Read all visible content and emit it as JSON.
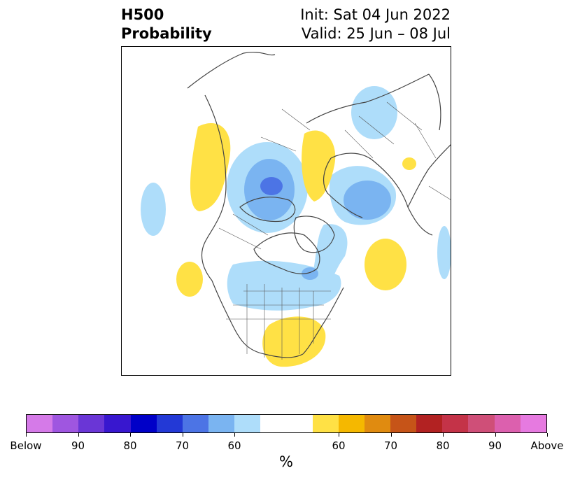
{
  "title": {
    "left_line1": "H500",
    "left_line2": "Probability",
    "right_line1": "Init: Sat 04 Jun 2022",
    "right_line2": "Valid: 25 Jun – 08 Jul"
  },
  "colorbar": {
    "unit": "%",
    "colors": [
      "#d57ae8",
      "#9f56e0",
      "#6a36d6",
      "#3817cf",
      "#0000c8",
      "#2339d6",
      "#4c74e5",
      "#7ab4f1",
      "#aeddfa",
      "#ffffff",
      "#ffffff",
      "#ffe145",
      "#f5b800",
      "#e08b10",
      "#c65418",
      "#b22222",
      "#c43348",
      "#cf4f78",
      "#dc60ae",
      "#e67ae0"
    ],
    "tick_labels": [
      "Below",
      "90",
      "80",
      "70",
      "60",
      "60",
      "70",
      "80",
      "90",
      "Above"
    ]
  },
  "colors": {
    "below_light": "#aeddfa",
    "below_mid": "#7ab4f1",
    "below_dark": "#4c74e5",
    "above_light": "#ffe145",
    "coastline": "#444444"
  }
}
